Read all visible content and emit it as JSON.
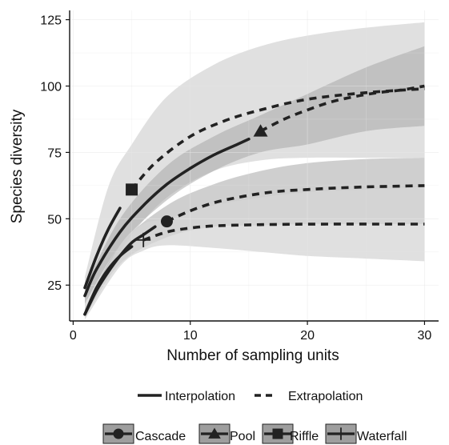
{
  "chart_data": {
    "type": "line",
    "xlabel": "Number of sampling units",
    "ylabel": "Species diversity",
    "xlim": [
      -0.3,
      31.2
    ],
    "ylim": [
      11.5,
      128.5
    ],
    "x_ticks": [
      0,
      10,
      20,
      30
    ],
    "y_ticks": [
      25,
      50,
      75,
      100,
      125
    ],
    "grid": true,
    "colors": {
      "line": "#222222",
      "band_light": "#d6d6d6",
      "band_dark": "#a8a8a8",
      "grid": "#e6e6e6",
      "axis": "#111111"
    },
    "legend_linetype": {
      "items": [
        {
          "label": "Interpolation",
          "style": "solid"
        },
        {
          "label": "Extrapolation",
          "style": "dashed"
        }
      ]
    },
    "legend_site": {
      "items": [
        {
          "label": "Cascade",
          "shape": "circle"
        },
        {
          "label": "Pool",
          "shape": "triangle"
        },
        {
          "label": "Riffle",
          "shape": "square"
        },
        {
          "label": "Waterfall",
          "shape": "plus"
        }
      ]
    },
    "series": [
      {
        "name": "Riffle",
        "shape": "square",
        "band_shade": "light",
        "observed": {
          "x": 5,
          "y": 61
        },
        "interpolation": {
          "x": [
            1,
            2,
            3,
            4
          ],
          "y": [
            24,
            36,
            46,
            54
          ]
        },
        "extrapolation": {
          "x": [
            5,
            7,
            10,
            13,
            16,
            20,
            25,
            30
          ],
          "y": [
            61,
            71,
            81,
            87,
            91,
            95,
            97.5,
            99
          ]
        },
        "ci_lower": {
          "x": [
            1,
            3,
            5,
            8,
            12,
            16,
            20,
            25,
            30
          ],
          "y": [
            14,
            30,
            44,
            58,
            68,
            72,
            73,
            73,
            73
          ]
        },
        "ci_upper": {
          "x": [
            1,
            3,
            5,
            8,
            12,
            16,
            20,
            25,
            30
          ],
          "y": [
            28,
            62,
            78,
            96,
            108,
            115,
            119,
            122,
            124
          ]
        }
      },
      {
        "name": "Pool",
        "shape": "triangle",
        "band_shade": "dark",
        "observed": {
          "x": 16,
          "y": 83
        },
        "interpolation": {
          "x": [
            1,
            2,
            4,
            6,
            8,
            10,
            12,
            14,
            15
          ],
          "y": [
            21,
            31,
            45,
            55,
            63,
            69,
            74,
            78,
            80
          ]
        },
        "extrapolation": {
          "x": [
            16,
            18,
            20,
            22,
            24,
            26,
            28,
            30
          ],
          "y": [
            83,
            87.5,
            91,
            94,
            96,
            97.5,
            98.5,
            100
          ]
        },
        "ci_lower": {
          "x": [
            1,
            4,
            8,
            12,
            16,
            20,
            25,
            30
          ],
          "y": [
            18,
            40,
            57,
            68,
            75,
            78,
            83,
            85
          ]
        },
        "ci_upper": {
          "x": [
            1,
            4,
            8,
            12,
            16,
            20,
            25,
            30
          ],
          "y": [
            24,
            50,
            70,
            81,
            89,
            97,
            107,
            115
          ]
        }
      },
      {
        "name": "Cascade",
        "shape": "circle",
        "band_shade": "dark",
        "observed": {
          "x": 8,
          "y": 49
        },
        "interpolation": {
          "x": [
            1,
            2,
            3,
            4,
            5,
            6,
            7
          ],
          "y": [
            14,
            23,
            30,
            36,
            41,
            44,
            47
          ]
        },
        "extrapolation": {
          "x": [
            8,
            10,
            12,
            14,
            16,
            18,
            20,
            22,
            25,
            28,
            30
          ],
          "y": [
            49,
            53,
            56,
            58,
            59.5,
            60.5,
            61,
            61.5,
            62,
            62.3,
            62.5
          ]
        },
        "ci_lower": {
          "x": [
            1,
            4,
            8,
            12,
            16,
            20,
            25,
            30
          ],
          "y": [
            13,
            33,
            43,
            47,
            47.5,
            48,
            48,
            48
          ]
        },
        "ci_upper": {
          "x": [
            1,
            4,
            8,
            12,
            16,
            20,
            25,
            30
          ],
          "y": [
            16,
            40,
            55,
            63,
            68,
            71,
            72.5,
            73
          ]
        }
      },
      {
        "name": "Waterfall",
        "shape": "plus",
        "band_shade": "light",
        "observed": {
          "x": 6,
          "y": 42
        },
        "interpolation": {
          "x": [
            1,
            2,
            3,
            4,
            5
          ],
          "y": [
            14,
            24,
            31,
            36,
            39.5
          ]
        },
        "extrapolation": {
          "x": [
            6,
            8,
            10,
            12,
            15,
            18,
            22,
            26,
            30
          ],
          "y": [
            42,
            45,
            46.5,
            47.3,
            47.7,
            47.9,
            48,
            48,
            48
          ]
        },
        "ci_lower": {
          "x": [
            1,
            4,
            6,
            8,
            12,
            16,
            20,
            25,
            30
          ],
          "y": [
            12,
            32,
            38,
            40,
            39,
            37.5,
            36,
            35,
            34
          ]
        },
        "ci_upper": {
          "x": [
            1,
            4,
            6,
            8,
            12,
            16,
            20,
            25,
            30
          ],
          "y": [
            16,
            40,
            48,
            50,
            55,
            58,
            60,
            61,
            62
          ]
        }
      }
    ]
  }
}
